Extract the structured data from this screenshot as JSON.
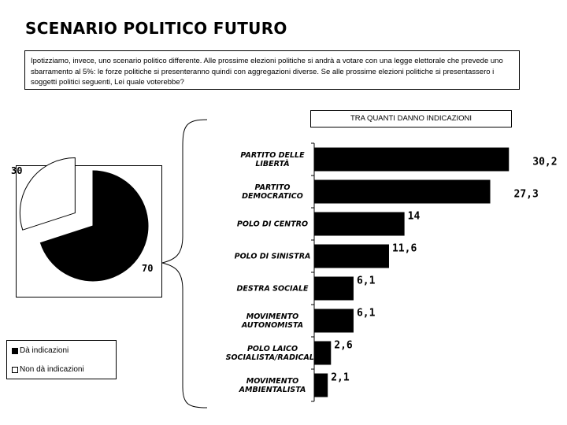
{
  "title": "SCENARIO POLITICO FUTURO",
  "question": "Ipotizziamo, invece, uno scenario politico differente. Alle prossime elezioni politiche si andrà a votare con una legge elettorale che prevede uno sbarramento al 5%: le forze politiche si presenteranno quindi con aggregazioni diverse. Se alle prossime elezioni politiche si presentassero i soggetti politici seguenti, Lei quale voterebbe?",
  "subset_label": "TRA QUANTI DANNO INDICAZIONI",
  "pie": {
    "slices": [
      {
        "name": "Dà indicazioni",
        "value": 70,
        "label": "70",
        "color": "#000000",
        "exploded": false
      },
      {
        "name": "Non dà indicazioni",
        "value": 30,
        "label": "30",
        "color": "#ffffff",
        "exploded": true
      }
    ]
  },
  "legend": {
    "items": [
      {
        "label": "Dà indicazioni",
        "color": "#000000"
      },
      {
        "label": "Non dà indicazioni",
        "color": "#ffffff"
      }
    ]
  },
  "chart_data": [
    {
      "type": "pie",
      "categories": [
        "Dà indicazioni",
        "Non dà indicazioni"
      ],
      "values": [
        70,
        30
      ]
    },
    {
      "type": "bar",
      "orientation": "horizontal",
      "categories": [
        [
          "PARTITO DELLE",
          "LIBERTÀ"
        ],
        [
          "PARTITO",
          "DEMOCRATICO"
        ],
        [
          "POLO DI CENTRO"
        ],
        [
          "POLO DI SINISTRA"
        ],
        [
          "DESTRA SOCIALE"
        ],
        [
          "MOVIMENTO",
          "AUTONOMISTA"
        ],
        [
          "POLO LAICO",
          "SOCIALISTA/RADICALE"
        ],
        [
          "MOVIMENTO",
          "AMBIENTALISTA"
        ]
      ],
      "values": [
        30.2,
        27.3,
        14,
        11.6,
        6.1,
        6.1,
        2.6,
        2.1
      ],
      "value_labels": [
        "30,2",
        "27,3",
        "14",
        "11,6",
        "6,1",
        "6,1",
        "2,6",
        "2,1"
      ],
      "bar_color": "#000000",
      "xlim": [
        0,
        32
      ]
    }
  ]
}
